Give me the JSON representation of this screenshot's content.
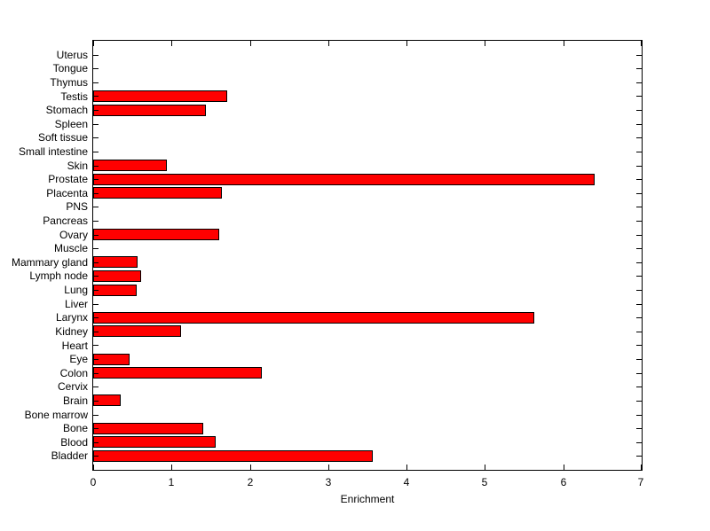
{
  "chart_data": {
    "type": "bar",
    "orientation": "horizontal",
    "title": "",
    "xlabel": "Enrichment",
    "ylabel": "",
    "xlim": [
      0,
      7
    ],
    "xticks": [
      0,
      1,
      2,
      3,
      4,
      5,
      6,
      7
    ],
    "grid": false,
    "legend": null,
    "bar_color": "#ff0000",
    "bar_edge_color": "#000000",
    "axis_color": "#000000",
    "background_color": "#ffffff",
    "categories": [
      "Uterus",
      "Tongue",
      "Thymus",
      "Testis",
      "Stomach",
      "Spleen",
      "Soft tissue",
      "Small intestine",
      "Skin",
      "Prostate",
      "Placenta",
      "PNS",
      "Pancreas",
      "Ovary",
      "Muscle",
      "Mammary gland",
      "Lymph node",
      "Lung",
      "Liver",
      "Larynx",
      "Kidney",
      "Heart",
      "Eye",
      "Colon",
      "Cervix",
      "Brain",
      "Bone marrow",
      "Bone",
      "Blood",
      "Bladder"
    ],
    "values": [
      0,
      0,
      0,
      1.71,
      1.44,
      0,
      0,
      0,
      0.94,
      6.4,
      1.64,
      0,
      0,
      1.61,
      0,
      0.57,
      0.61,
      0.55,
      0,
      5.63,
      1.12,
      0,
      0.46,
      2.15,
      0,
      0.35,
      0,
      1.4,
      1.56,
      3.57
    ]
  }
}
